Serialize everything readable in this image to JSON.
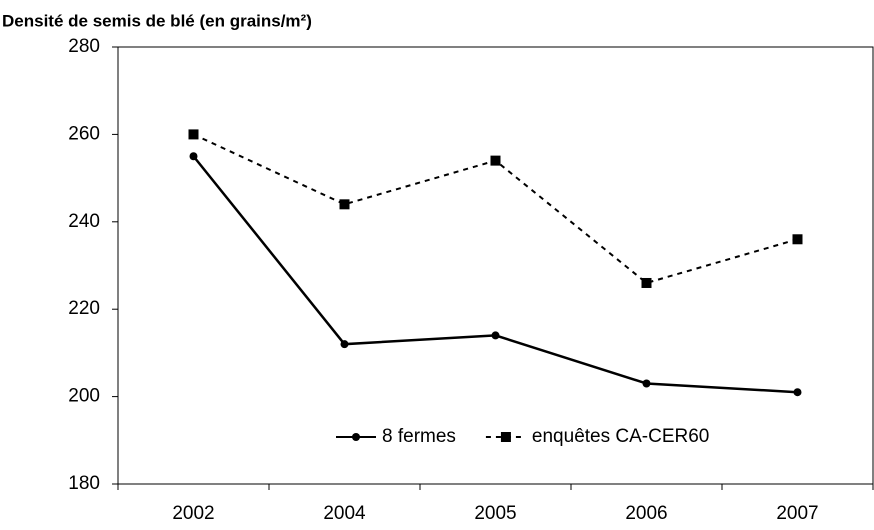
{
  "chart_data": {
    "type": "line",
    "title": "Densité de semis de blé (en grains/m²)",
    "categories": [
      "2002",
      "2004",
      "2005",
      "2006",
      "2007"
    ],
    "series": [
      {
        "name": "8 fermes",
        "color": "#000000",
        "dash": false,
        "marker": "circle",
        "values": [
          255,
          212,
          214,
          203,
          201
        ]
      },
      {
        "name": "enquêtes CA-CER60",
        "color": "#000000",
        "dash": true,
        "marker": "square",
        "values": [
          260,
          244,
          254,
          226,
          236
        ]
      }
    ],
    "ylim": [
      180,
      280
    ],
    "yticks": [
      180,
      200,
      220,
      240,
      260,
      280
    ],
    "grid": false,
    "legend": "bottom"
  }
}
